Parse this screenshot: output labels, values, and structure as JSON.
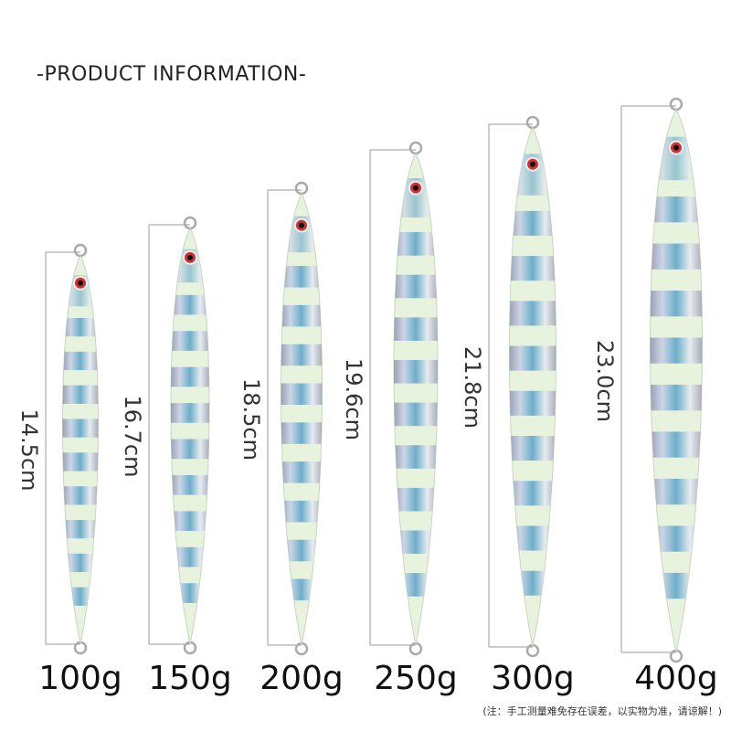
{
  "header": {
    "title": "-PRODUCT INFORMATION-"
  },
  "products": [
    {
      "length": "14.5cm",
      "weight": "100g"
    },
    {
      "length": "16.7cm",
      "weight": "150g"
    },
    {
      "length": "18.5cm",
      "weight": "200g"
    },
    {
      "length": "19.6cm",
      "weight": "250g"
    },
    {
      "length": "21.8cm",
      "weight": "300g"
    },
    {
      "length": "23.0cm",
      "weight": "400g"
    }
  ],
  "footer": {
    "note": "(注：手工测量难免存在误差，以实物为准，请谅解！)"
  }
}
